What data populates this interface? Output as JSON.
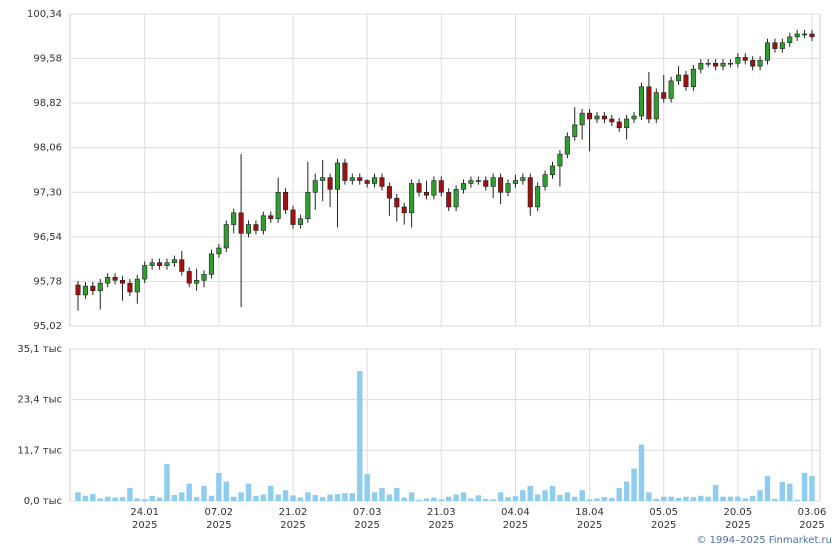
{
  "chart_data": {
    "type": "candlestick",
    "copyright": "© 1994–2025 Finmarket.ru",
    "up_color": "#2e9e2e",
    "down_color": "#a01010",
    "volume_color": "#8ecdf0",
    "grid": true,
    "categories": [
      null,
      null,
      null,
      null,
      null,
      null,
      null,
      null,
      null,
      "24.01\n2025",
      null,
      null,
      null,
      null,
      null,
      null,
      null,
      null,
      null,
      "07.02\n2025",
      null,
      null,
      null,
      null,
      null,
      null,
      null,
      null,
      null,
      "21.02\n2025",
      null,
      null,
      null,
      null,
      null,
      null,
      null,
      null,
      null,
      "07.03\n2025",
      null,
      null,
      null,
      null,
      null,
      null,
      null,
      null,
      null,
      "21.03\n2025",
      null,
      null,
      null,
      null,
      null,
      null,
      null,
      null,
      null,
      "04.04\n2025",
      null,
      null,
      null,
      null,
      null,
      null,
      null,
      null,
      null,
      "18.04\n2025",
      null,
      null,
      null,
      null,
      null,
      null,
      null,
      null,
      null,
      "05.05\n2025",
      null,
      null,
      null,
      null,
      null,
      null,
      null,
      null,
      null,
      "20.05\n2025",
      null,
      null,
      null,
      null,
      null,
      null,
      null,
      null,
      null,
      "03.06\n2025"
    ],
    "open": [
      95.72,
      95.55,
      95.7,
      95.62,
      95.75,
      95.85,
      95.8,
      95.75,
      95.6,
      95.82,
      96.05,
      96.1,
      96.05,
      96.1,
      96.15,
      95.95,
      95.75,
      95.8,
      95.9,
      96.25,
      96.35,
      96.75,
      96.95,
      96.6,
      96.75,
      96.65,
      96.9,
      96.85,
      97.3,
      97.0,
      96.75,
      96.85,
      97.3,
      97.5,
      97.55,
      97.35,
      97.8,
      97.5,
      97.55,
      97.5,
      97.45,
      97.55,
      97.4,
      97.2,
      97.05,
      96.95,
      97.45,
      97.3,
      97.25,
      97.5,
      97.3,
      97.05,
      97.35,
      97.45,
      97.5,
      97.5,
      97.4,
      97.55,
      97.3,
      97.45,
      97.5,
      97.55,
      97.05,
      97.4,
      97.6,
      97.75,
      97.95,
      98.25,
      98.45,
      98.65,
      98.55,
      98.6,
      98.55,
      98.5,
      98.4,
      98.55,
      98.6,
      99.1,
      98.55,
      99.0,
      98.9,
      99.2,
      99.3,
      99.1,
      99.4,
      99.5,
      99.5,
      99.45,
      99.5,
      99.5,
      99.6,
      99.55,
      99.45,
      99.55,
      99.85,
      99.75,
      99.85,
      99.95,
      100.0,
      100.0
    ],
    "high": [
      95.79,
      95.77,
      95.77,
      95.82,
      95.92,
      95.92,
      95.87,
      95.82,
      95.89,
      96.12,
      96.17,
      96.17,
      96.17,
      96.22,
      96.3,
      96.02,
      96.0,
      95.97,
      96.32,
      96.42,
      96.82,
      97.02,
      97.95,
      96.82,
      96.82,
      96.97,
      96.97,
      97.55,
      97.37,
      97.07,
      96.92,
      97.82,
      97.62,
      97.85,
      97.62,
      97.87,
      97.87,
      97.62,
      97.62,
      97.52,
      97.62,
      97.62,
      97.47,
      97.27,
      97.12,
      97.52,
      97.52,
      97.5,
      97.57,
      97.57,
      97.37,
      97.42,
      97.52,
      97.57,
      97.57,
      97.57,
      97.62,
      97.62,
      97.52,
      97.6,
      97.62,
      97.62,
      97.47,
      97.67,
      97.82,
      98.02,
      98.32,
      98.75,
      98.72,
      98.72,
      98.67,
      98.67,
      98.62,
      98.57,
      98.62,
      98.67,
      99.17,
      99.35,
      99.07,
      99.3,
      99.27,
      99.45,
      99.37,
      99.47,
      99.57,
      99.57,
      99.57,
      99.57,
      99.57,
      99.67,
      99.67,
      99.62,
      99.62,
      99.92,
      99.92,
      99.92,
      100.02,
      100.07,
      100.07,
      100.07
    ],
    "low": [
      95.28,
      95.48,
      95.55,
      95.3,
      95.68,
      95.73,
      95.45,
      95.53,
      95.4,
      95.75,
      95.98,
      95.98,
      95.98,
      96.03,
      95.88,
      95.68,
      95.62,
      95.68,
      95.83,
      96.18,
      96.28,
      96.6,
      95.34,
      96.53,
      96.58,
      96.58,
      96.78,
      96.78,
      96.93,
      96.68,
      96.68,
      96.78,
      97.0,
      97.15,
      97.05,
      96.7,
      97.43,
      97.43,
      97.43,
      97.38,
      97.38,
      97.33,
      96.9,
      96.8,
      96.75,
      96.7,
      97.23,
      97.18,
      97.18,
      97.23,
      96.98,
      96.98,
      97.28,
      97.38,
      97.43,
      97.33,
      97.2,
      97.1,
      97.23,
      97.38,
      97.43,
      96.9,
      96.98,
      97.33,
      97.53,
      97.4,
      97.88,
      98.18,
      98.2,
      98.0,
      98.48,
      98.48,
      98.43,
      98.33,
      98.2,
      98.48,
      98.53,
      98.48,
      98.48,
      98.83,
      98.83,
      99.13,
      99.03,
      99.03,
      99.33,
      99.43,
      99.38,
      99.38,
      99.43,
      99.43,
      99.48,
      99.38,
      99.38,
      99.48,
      99.68,
      99.68,
      99.78,
      99.88,
      99.93,
      99.88
    ],
    "close": [
      95.55,
      95.7,
      95.62,
      95.75,
      95.85,
      95.8,
      95.75,
      95.6,
      95.82,
      96.05,
      96.1,
      96.05,
      96.1,
      96.15,
      95.95,
      95.75,
      95.8,
      95.9,
      96.25,
      96.35,
      96.75,
      96.95,
      96.6,
      96.75,
      96.65,
      96.9,
      96.85,
      97.3,
      97.0,
      96.75,
      96.85,
      97.3,
      97.5,
      97.55,
      97.35,
      97.8,
      97.5,
      97.55,
      97.5,
      97.45,
      97.55,
      97.4,
      97.2,
      97.05,
      96.95,
      97.45,
      97.3,
      97.25,
      97.5,
      97.3,
      97.05,
      97.35,
      97.45,
      97.5,
      97.5,
      97.4,
      97.55,
      97.3,
      97.45,
      97.5,
      97.55,
      97.05,
      97.4,
      97.6,
      97.75,
      97.95,
      98.25,
      98.45,
      98.65,
      98.55,
      98.6,
      98.55,
      98.5,
      98.4,
      98.55,
      98.6,
      99.1,
      98.55,
      99.0,
      98.9,
      99.2,
      99.3,
      99.1,
      99.4,
      99.5,
      99.5,
      99.45,
      99.5,
      99.5,
      99.6,
      99.55,
      99.45,
      99.55,
      99.85,
      99.75,
      99.85,
      99.95,
      100.0,
      100.0,
      99.95
    ],
    "volume": [
      2.0,
      1.2,
      1.6,
      0.6,
      1.0,
      0.8,
      0.9,
      3.0,
      0.6,
      0.4,
      1.2,
      0.8,
      8.5,
      1.4,
      2.0,
      4.0,
      0.9,
      3.5,
      1.2,
      6.5,
      4.5,
      1.0,
      2.0,
      4.0,
      1.2,
      1.5,
      3.5,
      1.5,
      2.5,
      1.3,
      0.8,
      2.0,
      1.4,
      0.9,
      1.5,
      1.6,
      1.8,
      1.8,
      30.0,
      6.2,
      2.0,
      3.0,
      1.5,
      3.0,
      0.8,
      2.0,
      0.3,
      0.6,
      0.8,
      0.4,
      1.0,
      1.5,
      2.0,
      0.6,
      1.3,
      0.5,
      0.4,
      2.0,
      0.9,
      1.1,
      2.5,
      3.5,
      1.5,
      2.5,
      3.5,
      1.4,
      2.0,
      1.0,
      2.5,
      0.4,
      0.6,
      0.9,
      0.7,
      3.0,
      4.5,
      7.5,
      13.0,
      2.0,
      0.5,
      1.0,
      1.0,
      0.7,
      1.0,
      0.9,
      1.2,
      1.0,
      3.7,
      1.0,
      1.0,
      1.0,
      0.6,
      1.2,
      2.5,
      5.8,
      0.5,
      4.4,
      4.0,
      0.3,
      6.5,
      5.8
    ],
    "ylim": [
      95.02,
      100.34
    ],
    "yticks": [
      {
        "value": 95.02,
        "label": "95,02"
      },
      {
        "value": 95.78,
        "label": "95,78"
      },
      {
        "value": 96.54,
        "label": "96,54"
      },
      {
        "value": 97.3,
        "label": "97,30"
      },
      {
        "value": 98.06,
        "label": "98,06"
      },
      {
        "value": 98.82,
        "label": "98,82"
      },
      {
        "value": 99.58,
        "label": "99,58"
      },
      {
        "value": 100.34,
        "label": "100,34"
      }
    ],
    "y2lim": [
      0,
      35.1
    ],
    "y2ticks": [
      {
        "value": 0,
        "label": "0,0 тыс"
      },
      {
        "value": 11.7,
        "label": "11,7 тыс"
      },
      {
        "value": 23.4,
        "label": "23,4 тыс"
      },
      {
        "value": 35.1,
        "label": "35,1 тыс"
      }
    ]
  }
}
